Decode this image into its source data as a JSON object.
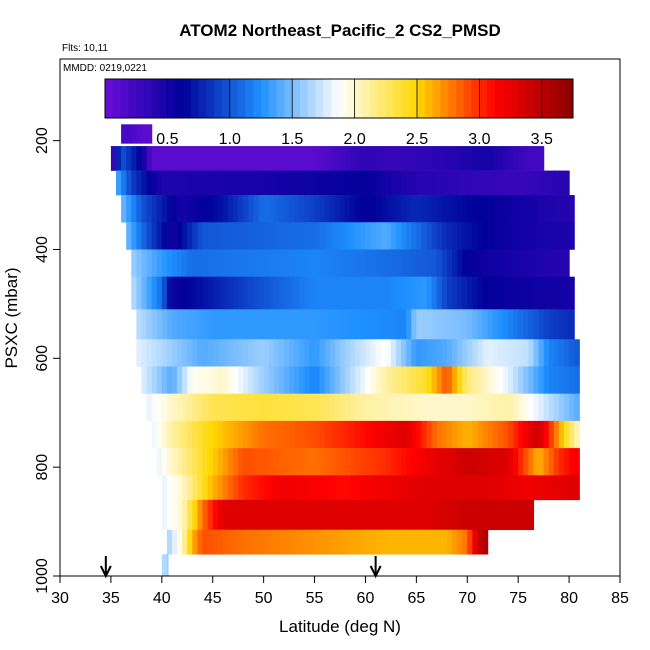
{
  "chart_data": {
    "type": "heatmap",
    "title": "ATOM2 Northeast_Pacific_2 CS2_PMSD",
    "flights_label": "Flts: 10,11",
    "date_label": "MMDD: 0219,0221",
    "xlabel": "Latitude (deg N)",
    "ylabel": "PSXC (mbar)",
    "xlim": [
      30,
      85
    ],
    "ylim": [
      1000,
      50
    ],
    "x_ticks": [
      "30",
      "35",
      "40",
      "45",
      "50",
      "55",
      "60",
      "65",
      "70",
      "75",
      "80",
      "85"
    ],
    "y_ticks": [
      "200",
      "400",
      "600",
      "800",
      "1000"
    ],
    "colorbar": {
      "range": [
        0,
        3.75
      ],
      "tick_labels": [
        "0.5",
        "1.0",
        "1.5",
        "2.0",
        "2.5",
        "3.0",
        "3.5"
      ],
      "colors": [
        "#6a0dd8",
        "#00009a",
        "#1e90ff",
        "#ffffff",
        "#ffd700",
        "#ff0000",
        "#8b0000"
      ]
    },
    "markers_latitude": [
      34.5,
      61
    ],
    "bands": [
      {
        "p_top": 170,
        "p_bottom": 205,
        "lat_start": 36,
        "lat_end": 39,
        "cells": [
          [
            36,
            0.2
          ],
          [
            37,
            0.2
          ],
          [
            38,
            0.1
          ],
          [
            39,
            0.1
          ]
        ]
      },
      {
        "p_top": 210,
        "p_bottom": 255,
        "lat_start": 35,
        "lat_end": 77.5,
        "cells": [
          [
            35,
            0.1
          ],
          [
            36,
            1.0
          ],
          [
            38,
            0.6
          ],
          [
            39,
            0.1
          ],
          [
            55,
            0.1
          ],
          [
            60,
            0.35
          ],
          [
            63,
            0.3
          ],
          [
            68,
            0.4
          ],
          [
            72,
            0.5
          ],
          [
            75,
            0.3
          ],
          [
            77.5,
            0.2
          ]
        ]
      },
      {
        "p_top": 255,
        "p_bottom": 300,
        "lat_start": 35.5,
        "lat_end": 80,
        "cells": [
          [
            35.5,
            1.4
          ],
          [
            37,
            0.9
          ],
          [
            40,
            0.45
          ],
          [
            50,
            0.5
          ],
          [
            60,
            0.6
          ],
          [
            65,
            0.4
          ],
          [
            70,
            0.35
          ],
          [
            75,
            0.3
          ],
          [
            80,
            0.4
          ]
        ]
      },
      {
        "p_top": 300,
        "p_bottom": 350,
        "lat_start": 36,
        "lat_end": 80.5,
        "cells": [
          [
            36,
            1.5
          ],
          [
            38,
            1.0
          ],
          [
            42,
            0.5
          ],
          [
            46,
            0.7
          ],
          [
            50,
            1.1
          ],
          [
            55,
            0.9
          ],
          [
            60,
            0.6
          ],
          [
            65,
            0.8
          ],
          [
            68,
            0.7
          ],
          [
            72,
            0.6
          ],
          [
            76,
            0.5
          ],
          [
            80.5,
            0.4
          ]
        ]
      },
      {
        "p_top": 350,
        "p_bottom": 400,
        "lat_start": 36.5,
        "lat_end": 80.5,
        "cells": [
          [
            36.5,
            1.5
          ],
          [
            38,
            1.1
          ],
          [
            41,
            0.5
          ],
          [
            44,
            1.0
          ],
          [
            55,
            1.1
          ],
          [
            62,
            1.4
          ],
          [
            65,
            1.1
          ],
          [
            68,
            0.8
          ],
          [
            72,
            0.6
          ],
          [
            76,
            0.5
          ],
          [
            80.5,
            0.45
          ]
        ]
      },
      {
        "p_top": 400,
        "p_bottom": 450,
        "lat_start": 37,
        "lat_end": 80,
        "cells": [
          [
            37,
            1.6
          ],
          [
            40,
            1.3
          ],
          [
            43,
            1.1
          ],
          [
            55,
            1.2
          ],
          [
            62,
            1.1
          ],
          [
            67,
            1.0
          ],
          [
            70,
            0.6
          ],
          [
            74,
            0.5
          ],
          [
            80,
            0.4
          ]
        ]
      },
      {
        "p_top": 450,
        "p_bottom": 510,
        "lat_start": 37,
        "lat_end": 80.5,
        "cells": [
          [
            37,
            1.7
          ],
          [
            40,
            1.1
          ],
          [
            41,
            0.55
          ],
          [
            48,
            0.9
          ],
          [
            55,
            1.2
          ],
          [
            62,
            1.2
          ],
          [
            66,
            1.3
          ],
          [
            68,
            0.9
          ],
          [
            72,
            0.6
          ],
          [
            80.5,
            0.5
          ]
        ]
      },
      {
        "p_top": 510,
        "p_bottom": 565,
        "lat_start": 37.5,
        "lat_end": 80.5,
        "cells": [
          [
            37.5,
            1.7
          ],
          [
            41,
            1.4
          ],
          [
            45,
            1.3
          ],
          [
            55,
            1.3
          ],
          [
            64,
            1.2
          ],
          [
            65,
            1.6
          ],
          [
            70,
            1.5
          ],
          [
            74,
            1.2
          ],
          [
            78,
            0.9
          ],
          [
            80.5,
            0.8
          ]
        ]
      },
      {
        "p_top": 565,
        "p_bottom": 615,
        "lat_start": 37.5,
        "lat_end": 81,
        "cells": [
          [
            37.5,
            1.8
          ],
          [
            41,
            1.6
          ],
          [
            44,
            1.4
          ],
          [
            50,
            1.6
          ],
          [
            55,
            1.3
          ],
          [
            58,
            1.6
          ],
          [
            62,
            1.9
          ],
          [
            65,
            1.3
          ],
          [
            68,
            1.4
          ],
          [
            72,
            1.8
          ],
          [
            76,
            1.7
          ],
          [
            78,
            1.2
          ],
          [
            81,
            1.0
          ]
        ]
      },
      {
        "p_top": 615,
        "p_bottom": 665,
        "lat_start": 38,
        "lat_end": 81,
        "cells": [
          [
            38,
            1.8
          ],
          [
            41,
            1.4
          ],
          [
            43,
            1.9
          ],
          [
            46,
            2.0
          ],
          [
            50,
            1.6
          ],
          [
            55,
            1.2
          ],
          [
            58,
            1.6
          ],
          [
            62,
            2.1
          ],
          [
            66,
            2.4
          ],
          [
            68,
            2.9
          ],
          [
            70,
            2.2
          ],
          [
            74,
            1.8
          ],
          [
            78,
            1.2
          ],
          [
            81,
            1.1
          ]
        ]
      },
      {
        "p_top": 665,
        "p_bottom": 715,
        "lat_start": 38.5,
        "lat_end": 81,
        "cells": [
          [
            38.5,
            1.8
          ],
          [
            41,
            2.0
          ],
          [
            45,
            2.3
          ],
          [
            50,
            2.35
          ],
          [
            55,
            2.3
          ],
          [
            60,
            2.1
          ],
          [
            66,
            2.0
          ],
          [
            70,
            2.0
          ],
          [
            74,
            2.1
          ],
          [
            78,
            1.7
          ],
          [
            81,
            1.4
          ]
        ]
      },
      {
        "p_top": 715,
        "p_bottom": 765,
        "lat_start": 39,
        "lat_end": 81,
        "cells": [
          [
            39,
            1.8
          ],
          [
            41,
            2.1
          ],
          [
            45,
            2.5
          ],
          [
            50,
            2.8
          ],
          [
            55,
            2.9
          ],
          [
            60,
            3.1
          ],
          [
            64,
            3.3
          ],
          [
            67,
            2.8
          ],
          [
            70,
            2.6
          ],
          [
            74,
            2.9
          ],
          [
            77,
            3.4
          ],
          [
            80,
            2.3
          ],
          [
            81,
            2.0
          ]
        ]
      },
      {
        "p_top": 765,
        "p_bottom": 815,
        "lat_start": 39.5,
        "lat_end": 81,
        "cells": [
          [
            39.5,
            1.8
          ],
          [
            41,
            2.0
          ],
          [
            44,
            2.4
          ],
          [
            48,
            2.9
          ],
          [
            55,
            2.8
          ],
          [
            62,
            3.0
          ],
          [
            66,
            3.2
          ],
          [
            70,
            3.4
          ],
          [
            74,
            3.3
          ],
          [
            77,
            2.6
          ],
          [
            79,
            3.0
          ],
          [
            81,
            3.2
          ]
        ]
      },
      {
        "p_top": 815,
        "p_bottom": 860,
        "lat_start": 40,
        "lat_end": 81,
        "cells": [
          [
            40,
            1.8
          ],
          [
            42,
            2.0
          ],
          [
            45,
            2.6
          ],
          [
            48,
            3.0
          ],
          [
            52,
            3.2
          ],
          [
            58,
            3.1
          ],
          [
            62,
            3.2
          ],
          [
            66,
            3.3
          ],
          [
            72,
            3.3
          ],
          [
            76,
            3.2
          ],
          [
            81,
            3.3
          ]
        ]
      },
      {
        "p_top": 860,
        "p_bottom": 915,
        "lat_start": 40,
        "lat_end": 76.5,
        "cells": [
          [
            40,
            1.8
          ],
          [
            42,
            2.0
          ],
          [
            44,
            2.8
          ],
          [
            46,
            3.3
          ],
          [
            50,
            3.3
          ],
          [
            55,
            3.3
          ],
          [
            60,
            3.3
          ],
          [
            66,
            3.3
          ],
          [
            70,
            3.4
          ],
          [
            76.5,
            3.4
          ]
        ]
      },
      {
        "p_top": 915,
        "p_bottom": 960,
        "lat_start": 40.5,
        "lat_end": 72,
        "cells": [
          [
            40.5,
            1.6
          ],
          [
            42,
            2.0
          ],
          [
            43,
            2.6
          ],
          [
            44,
            2.9
          ],
          [
            48,
            2.8
          ],
          [
            55,
            2.7
          ],
          [
            62,
            2.6
          ],
          [
            68,
            2.6
          ],
          [
            70,
            2.8
          ],
          [
            71,
            3.4
          ],
          [
            72,
            3.6
          ]
        ]
      },
      {
        "p_top": 960,
        "p_bottom": 1000,
        "lat_start": 40,
        "lat_end": 40.6,
        "cells": [
          [
            40,
            1.7
          ],
          [
            40.6,
            1.6
          ]
        ]
      }
    ]
  }
}
